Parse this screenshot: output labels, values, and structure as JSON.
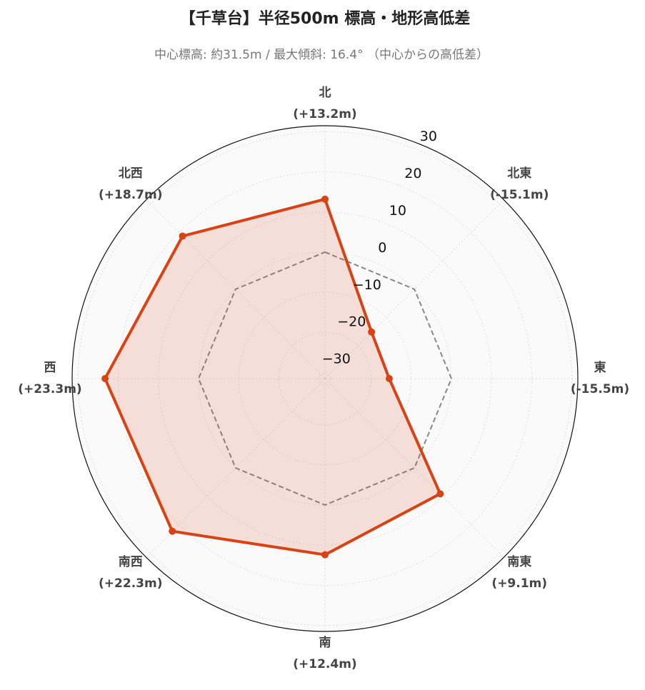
{
  "chart_data": {
    "type": "radar",
    "title": "【千草台】半径500m 標高・地形高低差",
    "subtitle": "中心標高: 約31.5m / 最大傾斜: 16.4° （中心からの高低差）",
    "categories": [
      "北",
      "北東",
      "東",
      "南東",
      "南",
      "南西",
      "西",
      "北西"
    ],
    "values": [
      13.2,
      -15.1,
      -15.5,
      9.1,
      12.4,
      22.3,
      23.3,
      18.7
    ],
    "value_labels": [
      "(+13.2m)",
      "(-15.1m)",
      "(-15.5m)",
      "(+9.1m)",
      "(+12.4m)",
      "(+22.3m)",
      "(+23.3m)",
      "(+18.7m)"
    ],
    "color": "#d84315",
    "zero_line": 0,
    "rlim": [
      -31.5,
      31.5
    ],
    "rticks": [
      {
        "value": -30,
        "label": "−30"
      },
      {
        "value": -20,
        "label": "−20"
      },
      {
        "value": -10,
        "label": "−10"
      },
      0,
      10,
      20,
      30
    ],
    "grid": true
  }
}
